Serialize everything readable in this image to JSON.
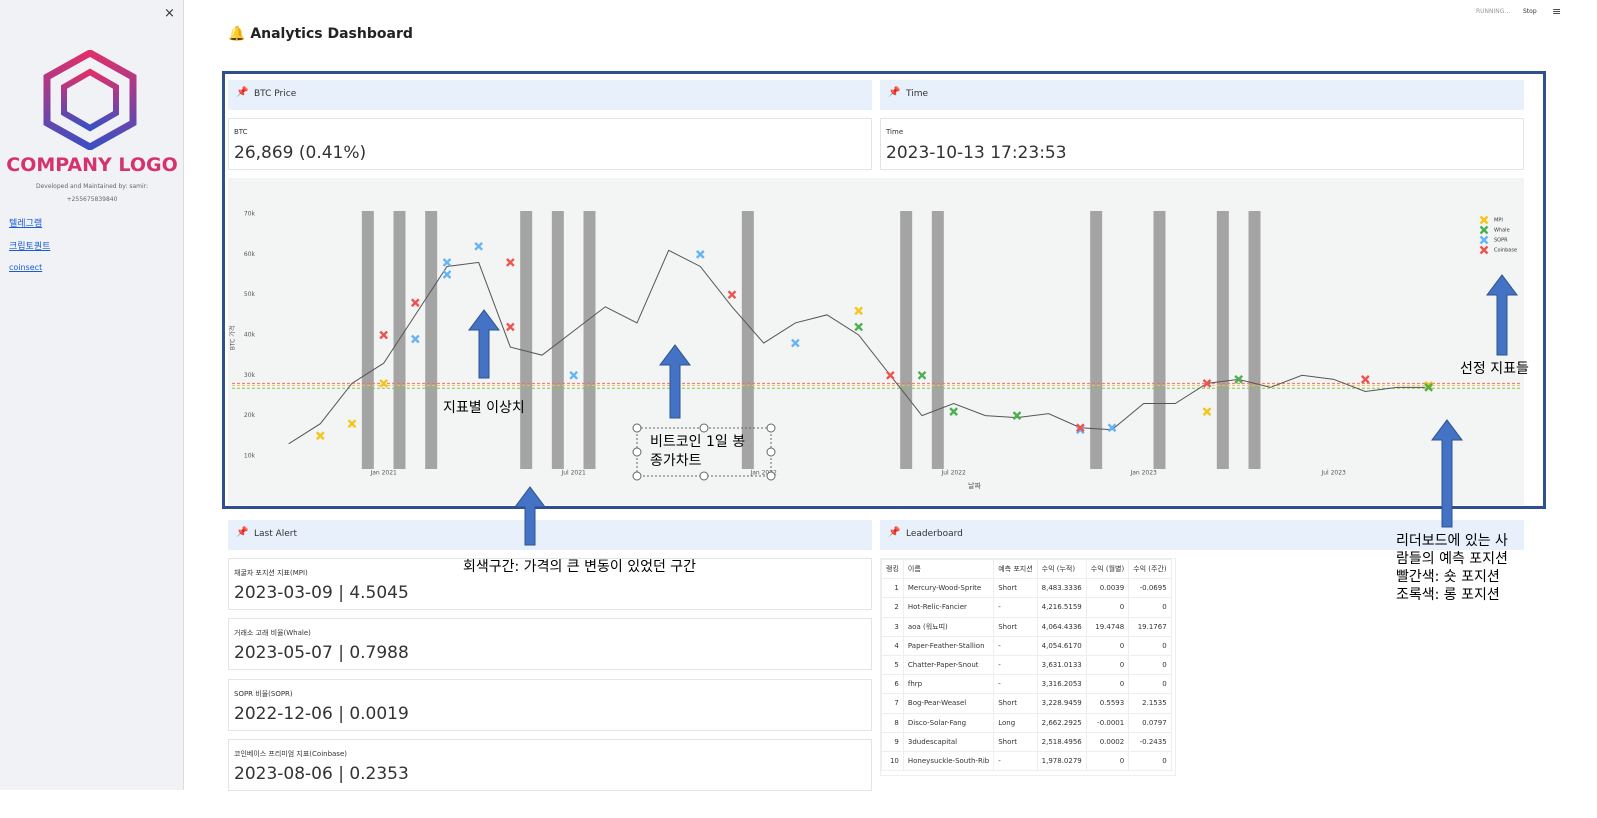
{
  "sidebar": {
    "close": "×",
    "logo_text": "COMPANY LOGO",
    "credit": [
      "Developed and Maintained by: samir:",
      "+255675839840"
    ],
    "links": [
      "텔레그램",
      "크립토퀀트",
      "coinsect"
    ]
  },
  "header": {
    "title": "Analytics Dashboard",
    "status": "RUNNING...",
    "stop": "Stop"
  },
  "cards": {
    "btc": {
      "title": "BTC Price",
      "label": "BTC",
      "value": "26,869 (0.41%)"
    },
    "time": {
      "title": "Time",
      "label": "Time",
      "value": "2023-10-13 17:23:53"
    }
  },
  "chart_data": {
    "type": "line",
    "x_label": "날짜",
    "y_label": "BTC 가격",
    "color": "#555555",
    "x": [
      "2020-10",
      "2020-11",
      "2020-12",
      "2021-01",
      "2021-02",
      "2021-03",
      "2021-04",
      "2021-05",
      "2021-06",
      "2021-07",
      "2021-08",
      "2021-09",
      "2021-10",
      "2021-11",
      "2021-12",
      "2022-01",
      "2022-02",
      "2022-03",
      "2022-04",
      "2022-05",
      "2022-06",
      "2022-07",
      "2022-08",
      "2022-09",
      "2022-10",
      "2022-11",
      "2022-12",
      "2023-01",
      "2023-02",
      "2023-03",
      "2023-04",
      "2023-05",
      "2023-06",
      "2023-07",
      "2023-08",
      "2023-09",
      "2023-10"
    ],
    "values": [
      13000,
      18000,
      28000,
      33000,
      45000,
      57000,
      58000,
      37000,
      35000,
      41000,
      47000,
      43000,
      61000,
      57000,
      47000,
      38000,
      43000,
      45000,
      40000,
      30000,
      20000,
      23000,
      20000,
      19500,
      20500,
      17000,
      16500,
      23000,
      23000,
      28000,
      29000,
      27000,
      30000,
      29000,
      26000,
      27000,
      27000
    ],
    "xlim": [
      "2020-09",
      "2023-12"
    ],
    "xticks": [
      {
        "value": "2021-01",
        "label": "Jan 2021"
      },
      {
        "value": "2021-07",
        "label": "Jul 2021"
      },
      {
        "value": "2022-01",
        "label": "Jan 2022"
      },
      {
        "value": "2022-07",
        "label": "Jul 2022"
      },
      {
        "value": "2023-01",
        "label": "Jan 2023"
      },
      {
        "value": "2023-07",
        "label": "Jul 2023"
      }
    ],
    "ylim": [
      8000,
      72000
    ],
    "yticks": [
      {
        "value": 10000,
        "label": "10k"
      },
      {
        "value": 20000,
        "label": "20k"
      },
      {
        "value": 30000,
        "label": "30k"
      },
      {
        "value": 40000,
        "label": "40k"
      },
      {
        "value": 50000,
        "label": "50k"
      },
      {
        "value": 60000,
        "label": "60k"
      },
      {
        "value": 70000,
        "label": "70k"
      }
    ],
    "bands": [
      "2020-12",
      "2021-01",
      "2021-02",
      "2021-05",
      "2021-06",
      "2021-07",
      "2021-12",
      "2022-05",
      "2022-06",
      "2022-11",
      "2023-01",
      "2023-03",
      "2023-04"
    ],
    "reference_lines": [
      {
        "value": 28000,
        "color": "#e57373"
      },
      {
        "value": 27500,
        "color": "#ffb74d"
      },
      {
        "value": 26800,
        "color": "#8bc34a"
      }
    ],
    "legend": "top-right",
    "markers": [
      {
        "name": "MPI",
        "color": "#f5c518",
        "x": [
          "2020-11",
          "2020-12",
          "2021-01",
          "2022-04",
          "2023-03",
          "2023-10"
        ],
        "values": [
          15000,
          18000,
          28000,
          46000,
          21000,
          27500
        ]
      },
      {
        "name": "Whale",
        "color": "#4caf50",
        "x": [
          "2022-04",
          "2022-06",
          "2022-07",
          "2022-09",
          "2023-04",
          "2023-10"
        ],
        "values": [
          42000,
          30000,
          21000,
          20000,
          29000,
          27000
        ]
      },
      {
        "name": "SOPR",
        "color": "#64b5f6",
        "x": [
          "2021-02",
          "2021-03",
          "2021-03",
          "2021-04",
          "2021-07",
          "2021-11",
          "2022-02",
          "2022-11",
          "2022-12"
        ],
        "values": [
          39000,
          58000,
          55000,
          62000,
          30000,
          60000,
          38000,
          16500,
          17000
        ]
      },
      {
        "name": "Coinbase",
        "color": "#ef5350",
        "x": [
          "2021-01",
          "2021-02",
          "2021-05",
          "2021-05",
          "2021-12",
          "2022-05",
          "2022-11",
          "2023-03",
          "2023-08"
        ],
        "values": [
          40000,
          48000,
          58000,
          42000,
          50000,
          30000,
          17000,
          28000,
          29000
        ]
      }
    ]
  },
  "last_alert": {
    "title": "Last Alert",
    "metrics": [
      {
        "label": "채굴자 포지션 지표(MPI)",
        "value": "2023-03-09 | 4.5045"
      },
      {
        "label": "거래소 고래 비율(Whale)",
        "value": "2023-05-07 | 0.7988"
      },
      {
        "label": "SOPR 비율(SOPR)",
        "value": "2022-12-06 | 0.0019"
      },
      {
        "label": "코인베이스 프리미엄 지표(Coinbase)",
        "value": "2023-08-06 | 0.2353"
      }
    ]
  },
  "leaderboard": {
    "title": "Leaderboard",
    "columns": [
      "랭킹",
      "이름",
      "예측 포지션",
      "수익 (누적)",
      "수익 (월별)",
      "수익 (주간)"
    ],
    "rows": [
      [
        "1",
        "Mercury-Wood-Sprite",
        "Short",
        "8,483.3336",
        "0.0039",
        "-0.0695"
      ],
      [
        "2",
        "Hot-Relic-Fancier",
        "-",
        "4,216.5159",
        "0",
        "0"
      ],
      [
        "3",
        "aoa (워뇨띠)",
        "Short",
        "4,064.4336",
        "19.4748",
        "19.1767"
      ],
      [
        "4",
        "Paper-Feather-Stallion",
        "-",
        "4,054.6170",
        "0",
        "0"
      ],
      [
        "5",
        "Chatter-Paper-Snout",
        "-",
        "3,631.0133",
        "0",
        "0"
      ],
      [
        "6",
        "fhrp",
        "-",
        "3,316.2053",
        "0",
        "0"
      ],
      [
        "7",
        "Bog-Pear-Weasel",
        "Short",
        "3,228.9459",
        "0.5593",
        "2.1535"
      ],
      [
        "8",
        "Disco-Solar-Fang",
        "Long",
        "2,662.2925",
        "-0.0001",
        "0.0797"
      ],
      [
        "9",
        "3dudescapital",
        "Short",
        "2,518.4956",
        "0.0002",
        "-0.2435"
      ],
      [
        "10",
        "Honeysuckle-South-Rib",
        "-",
        "1,978.0279",
        "0",
        "0"
      ]
    ]
  },
  "annotations": {
    "outliers": "지표별 이상치",
    "candle": [
      "비트코인 1일 봉",
      "종가차트"
    ],
    "gray": "회색구간: 가격의 큰 변동이 있었던 구간",
    "indicators": "선정 지표들",
    "positions": [
      "리더보드에 있는 사",
      "람들의 예측 포지션",
      "빨간색: 숏 포지션",
      "조록색: 롱 포지션"
    ]
  }
}
